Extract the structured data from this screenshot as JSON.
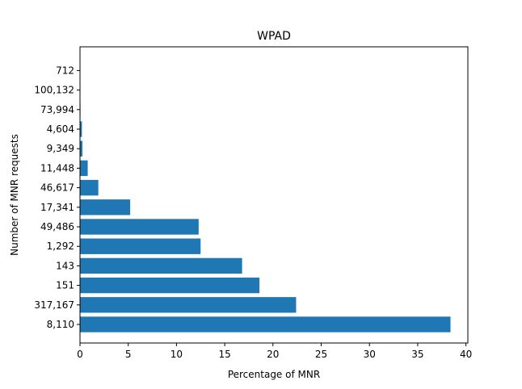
{
  "chart_data": {
    "type": "bar",
    "orientation": "horizontal",
    "title": "WPAD",
    "xlabel": "Percentage of MNR",
    "ylabel": "Number of MNR requests",
    "xlim": [
      0,
      40.2
    ],
    "xticks": [
      0,
      5,
      10,
      15,
      20,
      25,
      30,
      35,
      40
    ],
    "grid": false,
    "categories": [
      "8,110",
      "317,167",
      "151",
      "143",
      "1,292",
      "49,486",
      "17,341",
      "46,617",
      "11,448",
      "9,349",
      "4,604",
      "73,994",
      "100,132",
      "712"
    ],
    "values": [
      38.4,
      22.4,
      18.6,
      16.8,
      12.5,
      12.3,
      5.2,
      1.9,
      0.8,
      0.25,
      0.2,
      0.05,
      0.03,
      0.02
    ]
  },
  "colors": {
    "bar": "#1f77b4",
    "axis": "#000000"
  }
}
